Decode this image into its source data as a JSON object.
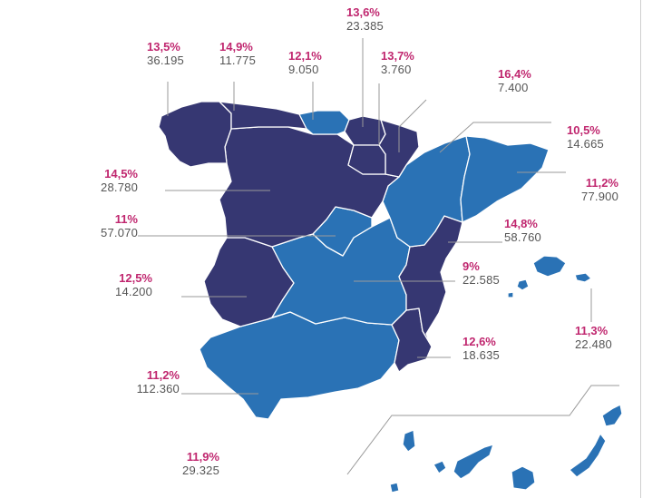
{
  "colors": {
    "dark": "#363772",
    "light": "#2a72b5",
    "border": "#ffffff",
    "leader": "#9a9a9a",
    "percent": "#c0276f",
    "value": "#555555"
  },
  "regions": [
    {
      "id": "galicia",
      "percent": "13,5%",
      "value": "36.195",
      "shade": "dark"
    },
    {
      "id": "asturias",
      "percent": "14,9%",
      "value": "11.775",
      "shade": "dark"
    },
    {
      "id": "cantabria",
      "percent": "12,1%",
      "value": "9.050",
      "shade": "light"
    },
    {
      "id": "pais-vasco",
      "percent": "13,6%",
      "value": "23.385",
      "shade": "dark"
    },
    {
      "id": "navarra",
      "percent": "13,7%",
      "value": "3.760",
      "shade": "dark"
    },
    {
      "id": "la-rioja",
      "percent": "16,4%",
      "value": "7.400",
      "shade": "dark"
    },
    {
      "id": "aragon",
      "percent": "10,5%",
      "value": "14.665",
      "shade": "light"
    },
    {
      "id": "cataluna",
      "percent": "11,2%",
      "value": "77.900",
      "shade": "light"
    },
    {
      "id": "castilla-leon",
      "percent": "14,5%",
      "value": "28.780",
      "shade": "dark"
    },
    {
      "id": "madrid",
      "percent": "11%",
      "value": "57.070",
      "shade": "light"
    },
    {
      "id": "valencia",
      "percent": "14,8%",
      "value": "58.760",
      "shade": "dark"
    },
    {
      "id": "castilla-la-mancha",
      "percent": "9%",
      "value": "22.585",
      "shade": "light"
    },
    {
      "id": "extremadura",
      "percent": "12,5%",
      "value": "14.200",
      "shade": "dark"
    },
    {
      "id": "baleares",
      "percent": "11,3%",
      "value": "22.480",
      "shade": "light"
    },
    {
      "id": "murcia",
      "percent": "12,6%",
      "value": "18.635",
      "shade": "dark"
    },
    {
      "id": "andalucia",
      "percent": "11,2%",
      "value": "112.360",
      "shade": "light"
    },
    {
      "id": "canarias",
      "percent": "11,9%",
      "value": "29.325",
      "shade": "light"
    }
  ]
}
